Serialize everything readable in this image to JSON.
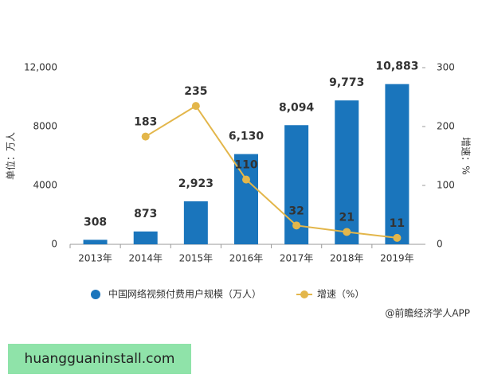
{
  "chart_data": {
    "type": "bar",
    "categories": [
      "2013年",
      "2014年",
      "2015年",
      "2016年",
      "2017年",
      "2018年",
      "2019年"
    ],
    "series": [
      {
        "name": "中国网络视频付费用户规模（万人）",
        "type": "bar",
        "color": "#1a75bc",
        "values": [
          308,
          873,
          2923,
          6130,
          8094,
          9773,
          10883
        ],
        "value_labels": [
          "308",
          "873",
          "2,923",
          "6,130",
          "8,094",
          "9,773",
          "10,883"
        ]
      },
      {
        "name": "增速（%）",
        "type": "line",
        "axis": "y2",
        "color": "#e3b64a",
        "values": [
          null,
          183,
          235,
          110,
          32,
          21,
          11
        ]
      }
    ],
    "ylabel": "单位：万人",
    "y2label": "增速：%",
    "ylim": [
      0,
      12000
    ],
    "yticks": [
      0,
      4000,
      8000,
      {
        "value": 12000,
        "label": "12,000"
      }
    ],
    "y2lim": [
      0,
      300
    ],
    "y2ticks": [
      0,
      100,
      200,
      300
    ],
    "source": "@前瞻经济学人APP"
  },
  "footer": "huangguaninstall.com"
}
